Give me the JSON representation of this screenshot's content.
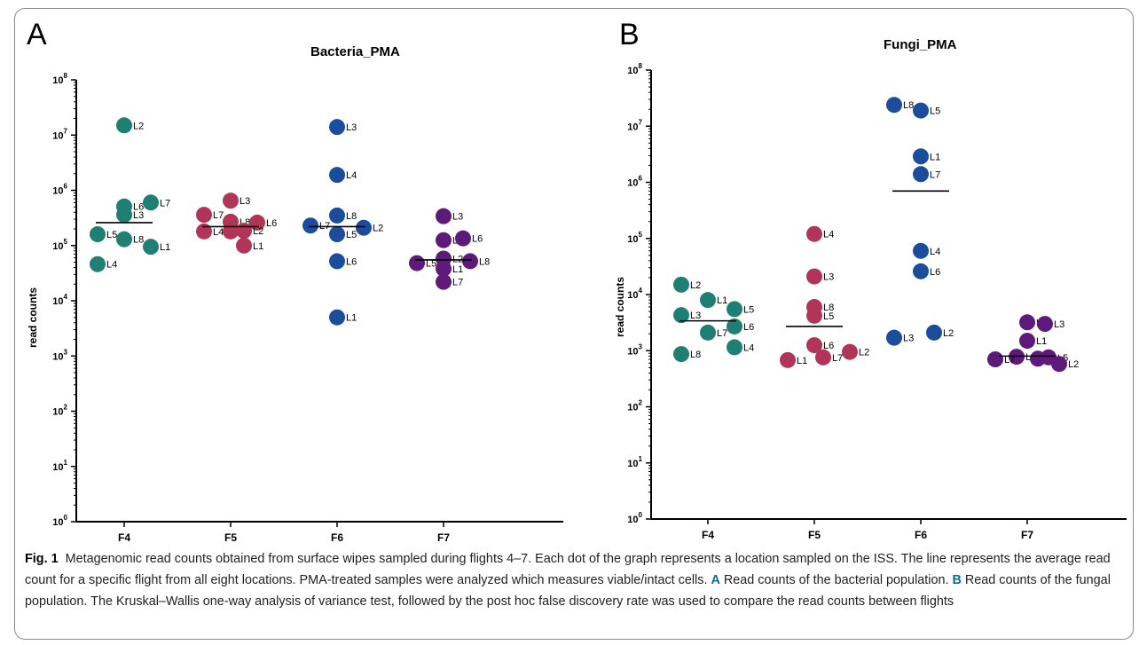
{
  "panels": [
    {
      "letter": "A",
      "title": "Bacteria_PMA",
      "ylabel": "read counts"
    },
    {
      "letter": "B",
      "title": "Fungi_PMA",
      "ylabel": "read counts"
    }
  ],
  "colors": {
    "F4": "#1f7f73",
    "F5": "#b03558",
    "F6": "#1c4c9c",
    "F7": "#5e1a78"
  },
  "chart_data": [
    {
      "type": "scatter",
      "title": "Bacteria_PMA",
      "xlabel": "",
      "ylabel": "read counts",
      "yscale": "log",
      "ylim": [
        1,
        100000000
      ],
      "yticks": [
        1,
        10,
        100,
        1000,
        10000,
        100000,
        1000000,
        10000000,
        100000000
      ],
      "categories": [
        "F4",
        "F5",
        "F6",
        "F7"
      ],
      "means": [
        260000,
        220000,
        220000,
        55000
      ],
      "series": [
        {
          "category": "F4",
          "points": [
            {
              "label": "L2",
              "value": 15000000
            },
            {
              "label": "L6",
              "value": 510000
            },
            {
              "label": "L7",
              "value": 600000
            },
            {
              "label": "L3",
              "value": 360000
            },
            {
              "label": "L5",
              "value": 160000
            },
            {
              "label": "L8",
              "value": 130000
            },
            {
              "label": "L1",
              "value": 95000
            },
            {
              "label": "L4",
              "value": 46000
            }
          ]
        },
        {
          "category": "F5",
          "points": [
            {
              "label": "L3",
              "value": 650000
            },
            {
              "label": "L7",
              "value": 360000
            },
            {
              "label": "L8",
              "value": 270000
            },
            {
              "label": "L6",
              "value": 260000
            },
            {
              "label": "L4",
              "value": 180000
            },
            {
              "label": "L5",
              "value": 180000
            },
            {
              "label": "L2",
              "value": 185000
            },
            {
              "label": "L1",
              "value": 100000
            }
          ]
        },
        {
          "category": "F6",
          "points": [
            {
              "label": "L3",
              "value": 14000000
            },
            {
              "label": "L4",
              "value": 1900000
            },
            {
              "label": "L8",
              "value": 350000
            },
            {
              "label": "L7",
              "value": 230000
            },
            {
              "label": "L2",
              "value": 210000
            },
            {
              "label": "L5",
              "value": 160000
            },
            {
              "label": "L6",
              "value": 52000
            },
            {
              "label": "L1",
              "value": 5000
            }
          ]
        },
        {
          "category": "F7",
          "points": [
            {
              "label": "L3",
              "value": 340000
            },
            {
              "label": "L4",
              "value": 125000
            },
            {
              "label": "L6",
              "value": 135000
            },
            {
              "label": "L2",
              "value": 58000
            },
            {
              "label": "L5",
              "value": 48000
            },
            {
              "label": "L8",
              "value": 52000
            },
            {
              "label": "L1",
              "value": 38000
            },
            {
              "label": "L7",
              "value": 22000
            }
          ]
        }
      ]
    },
    {
      "type": "scatter",
      "title": "Fungi_PMA",
      "xlabel": "",
      "ylabel": "read counts",
      "yscale": "log",
      "ylim": [
        1,
        100000000
      ],
      "yticks": [
        1,
        10,
        100,
        1000,
        10000,
        100000,
        1000000,
        10000000,
        100000000
      ],
      "categories": [
        "F4",
        "F5",
        "F6",
        "F7"
      ],
      "means": [
        3400,
        2700,
        700000,
        800
      ],
      "series": [
        {
          "category": "F4",
          "points": [
            {
              "label": "L2",
              "value": 15000
            },
            {
              "label": "L1",
              "value": 8000
            },
            {
              "label": "L5",
              "value": 5500
            },
            {
              "label": "L3",
              "value": 4300
            },
            {
              "label": "L6",
              "value": 2700
            },
            {
              "label": "L7",
              "value": 2100
            },
            {
              "label": "L4",
              "value": 1150
            },
            {
              "label": "L8",
              "value": 870
            }
          ]
        },
        {
          "category": "F5",
          "points": [
            {
              "label": "L4",
              "value": 120000
            },
            {
              "label": "L3",
              "value": 21000
            },
            {
              "label": "L8",
              "value": 6000
            },
            {
              "label": "L5",
              "value": 4200
            },
            {
              "label": "L6",
              "value": 1250
            },
            {
              "label": "L2",
              "value": 950
            },
            {
              "label": "L7",
              "value": 760
            },
            {
              "label": "L1",
              "value": 680
            }
          ]
        },
        {
          "category": "F6",
          "points": [
            {
              "label": "L8",
              "value": 24000000
            },
            {
              "label": "L5",
              "value": 19000000
            },
            {
              "label": "L1",
              "value": 2900000
            },
            {
              "label": "L7",
              "value": 1400000
            },
            {
              "label": "L4",
              "value": 60000
            },
            {
              "label": "L6",
              "value": 26000
            },
            {
              "label": "L2",
              "value": 2100
            },
            {
              "label": "L3",
              "value": 1700
            }
          ]
        },
        {
          "category": "F7",
          "points": [
            {
              "label": "L4",
              "value": 3200
            },
            {
              "label": "L3",
              "value": 3000
            },
            {
              "label": "L1",
              "value": 1500
            },
            {
              "label": "L6",
              "value": 780
            },
            {
              "label": "L8",
              "value": 720
            },
            {
              "label": "L5",
              "value": 760
            },
            {
              "label": "L2",
              "value": 580
            },
            {
              "label": "L7",
              "value": 700
            }
          ]
        }
      ]
    }
  ],
  "caption": {
    "fig_label": "Fig. 1",
    "part1": "Metagenomic read counts obtained from surface wipes sampled during flights 4–7. Each dot of the graph represents a location sampled on the ISS. The line represents the average read count for a specific flight from all eight locations. PMA-treated samples were analyzed which measures viable/intact cells.",
    "ref_a": "A",
    "part2": "Read counts of the bacterial population.",
    "ref_b": "B",
    "part3": "Read counts of the fungal population. The Kruskal–Wallis one-way analysis of variance test, followed by the post hoc false discovery rate was used to compare the read counts between flights"
  }
}
